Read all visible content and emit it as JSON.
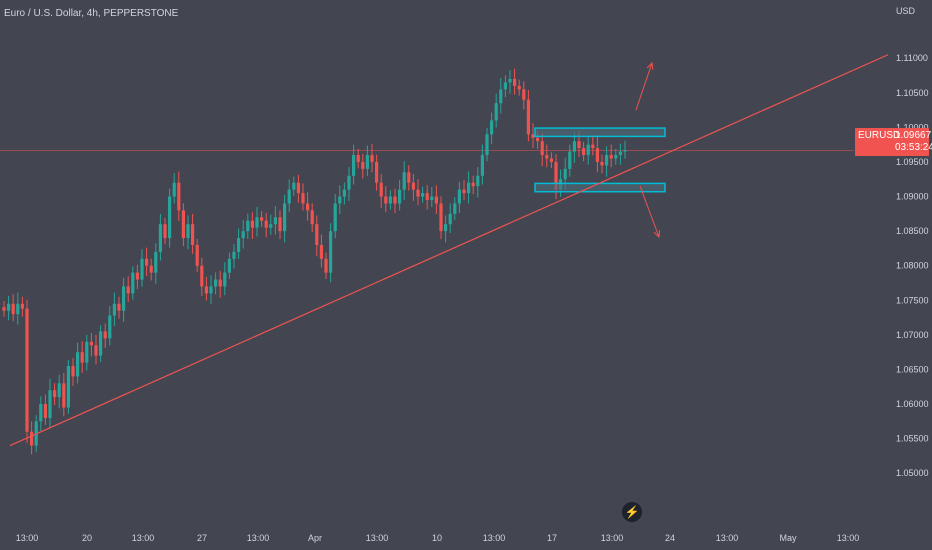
{
  "header": {
    "title": "Euro / U.S. Dollar, 4h, PEPPERSTONE"
  },
  "badge": {
    "symbol": "EURUSD",
    "price": "1.09667",
    "countdown": "03:53:24"
  },
  "colors": {
    "bull": "#26a69a",
    "bear": "#ef5350",
    "trendline": "#ef5350",
    "zone_fill": "#4d6b7a",
    "zone_border": "#00bcd4",
    "background": "#434651",
    "text": "#d1d4dc"
  },
  "icons": {
    "logo": "bolt-icon"
  },
  "chart_data": {
    "type": "candlestick",
    "title": "Euro / U.S. Dollar, 4h, PEPPERSTONE",
    "y_unit": "USD",
    "ylim": [
      1.047,
      1.1135
    ],
    "y_ticks": [
      "1.11000",
      "1.10500",
      "1.10000",
      "1.09500",
      "1.09000",
      "1.08500",
      "1.08000",
      "1.07500",
      "1.07000",
      "1.06500",
      "1.06000",
      "1.05500",
      "1.05000"
    ],
    "x_ticks": [
      "13:00",
      "20",
      "13:00",
      "27",
      "13:00",
      "Apr",
      "13:00",
      "10",
      "13:00",
      "17",
      "13:00",
      "24",
      "13:00",
      "May",
      "13:00"
    ],
    "last_price": 1.09667,
    "closes": [
      1.0735,
      1.0745,
      1.073,
      1.0745,
      1.0738,
      1.056,
      1.054,
      1.0575,
      1.06,
      1.058,
      1.062,
      1.061,
      1.063,
      1.0595,
      1.0655,
      1.064,
      1.0675,
      1.066,
      1.069,
      1.0685,
      1.067,
      1.0705,
      1.0695,
      1.0728,
      1.0745,
      1.0735,
      1.077,
      1.076,
      1.079,
      1.078,
      1.081,
      1.08,
      1.079,
      1.082,
      1.086,
      1.084,
      1.09,
      1.092,
      1.088,
      1.084,
      1.086,
      1.083,
      1.08,
      1.077,
      1.076,
      1.077,
      1.078,
      1.077,
      1.079,
      1.081,
      1.082,
      1.084,
      1.085,
      1.0865,
      1.0855,
      1.087,
      1.0865,
      1.0855,
      1.086,
      1.087,
      1.085,
      1.089,
      1.091,
      1.092,
      1.0905,
      1.089,
      1.088,
      1.086,
      1.083,
      1.081,
      1.079,
      1.085,
      1.089,
      1.09,
      1.091,
      1.093,
      1.096,
      1.095,
      1.094,
      1.096,
      1.095,
      1.092,
      1.09,
      1.089,
      1.09,
      1.089,
      1.091,
      1.0935,
      1.092,
      1.091,
      1.09,
      1.0905,
      1.0895,
      1.09,
      1.089,
      1.085,
      1.086,
      1.0875,
      1.089,
      1.091,
      1.0905,
      1.092,
      1.0915,
      1.093,
      1.096,
      1.099,
      1.101,
      1.1035,
      1.1055,
      1.1065,
      1.107,
      1.106,
      1.1055,
      1.104,
      1.099,
      1.0985,
      1.098,
      1.096,
      1.0955,
      1.095,
      1.091,
      1.0925,
      1.094,
      1.0965,
      1.098,
      1.097,
      1.096,
      1.0975,
      1.097,
      1.095,
      1.0945,
      1.096,
      1.0955,
      1.096,
      1.0965,
      1.0967
    ],
    "trendline": [
      1.054,
      1.1105
    ],
    "zones": [
      {
        "low": 1.0987,
        "high": 1.0999
      },
      {
        "low": 1.0907,
        "high": 1.0919
      }
    ],
    "annotations": [
      "arrow up from upper zone",
      "arrow down from lower zone"
    ],
    "grid": false
  }
}
